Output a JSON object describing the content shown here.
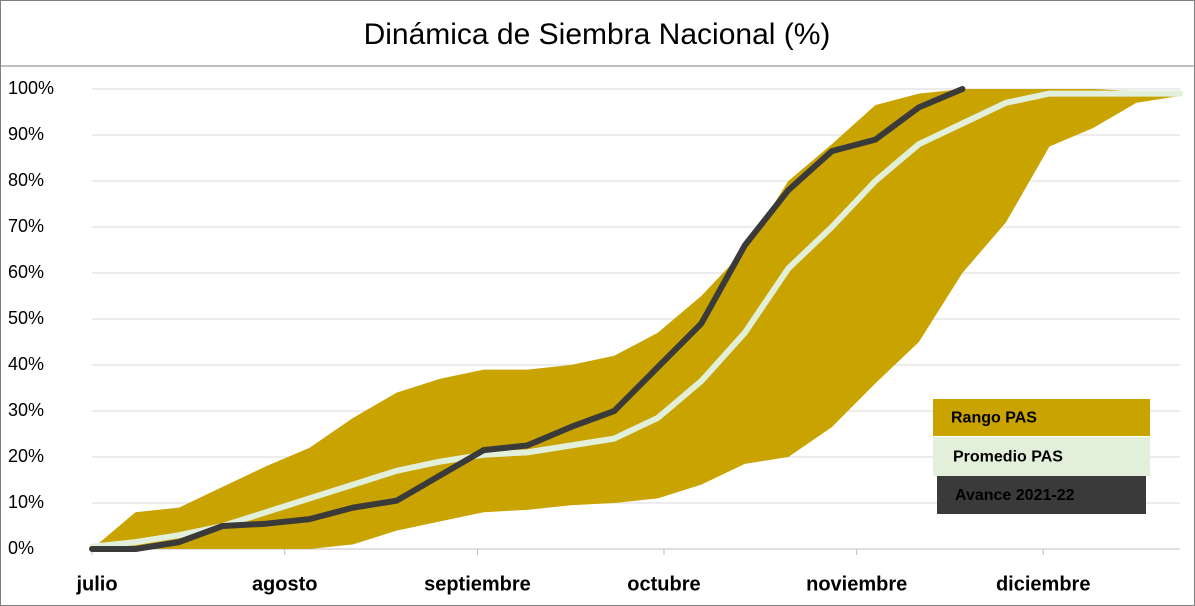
{
  "chart_data": {
    "type": "line",
    "title": "Dinámica de Siembra Nacional (%)",
    "x": [
      0,
      7,
      14,
      21,
      28,
      35,
      42,
      49,
      56,
      63,
      70,
      77,
      84,
      91,
      98,
      105,
      112,
      119,
      126,
      133,
      140,
      147,
      154,
      161,
      168,
      175
    ],
    "xlim": [
      0,
      175
    ],
    "xticks": [
      {
        "value": 0,
        "label": "julio"
      },
      {
        "value": 31,
        "label": "agosto"
      },
      {
        "value": 62,
        "label": "septiembre"
      },
      {
        "value": 92,
        "label": "octubre"
      },
      {
        "value": 123,
        "label": "noviembre"
      },
      {
        "value": 153,
        "label": "diciembre"
      }
    ],
    "ylim": [
      0,
      100
    ],
    "yticks": [
      {
        "value": 0,
        "label": "0%"
      },
      {
        "value": 10,
        "label": "10%"
      },
      {
        "value": 20,
        "label": "20%"
      },
      {
        "value": 30,
        "label": "30%"
      },
      {
        "value": 40,
        "label": "40%"
      },
      {
        "value": 50,
        "label": "50%"
      },
      {
        "value": 60,
        "label": "60%"
      },
      {
        "value": 70,
        "label": "70%"
      },
      {
        "value": 80,
        "label": "80%"
      },
      {
        "value": 90,
        "label": "90%"
      },
      {
        "value": 100,
        "label": "100%"
      }
    ],
    "grid": true,
    "legend": "bottom-right",
    "series": [
      {
        "name": "Rango PAS",
        "color": "#c9a400",
        "type": "band",
        "high": [
          0,
          8,
          9,
          13.5,
          18,
          22,
          28.5,
          34,
          37,
          39,
          39,
          40,
          42,
          47,
          55,
          65,
          80,
          88,
          96.5,
          99,
          100,
          100,
          100,
          100,
          99.5,
          99
        ],
        "low": [
          0,
          0,
          0,
          0,
          0,
          0,
          1,
          4,
          6,
          8,
          8.5,
          9.5,
          10,
          11,
          14,
          18.5,
          20,
          26.5,
          36,
          45,
          60,
          71,
          87.5,
          91.5,
          97,
          98.5
        ]
      },
      {
        "name": "Promedio PAS",
        "color": "#e2efda",
        "type": "line",
        "values": [
          0.5,
          1.5,
          3,
          5,
          8,
          11,
          14,
          17,
          19,
          20.5,
          21,
          22.5,
          24,
          28.5,
          36.5,
          47,
          61,
          70,
          80,
          88,
          92.5,
          97,
          99,
          99,
          99,
          99
        ]
      },
      {
        "name": "Avance 2021-22",
        "color": "#3a3a3a",
        "type": "line",
        "values": [
          0,
          0,
          1.5,
          5,
          5.5,
          6.5,
          9,
          10.5,
          16,
          21.5,
          22.5,
          26.5,
          30,
          39.5,
          49,
          66,
          78,
          86.5,
          89,
          96,
          100,
          null,
          null,
          null,
          null,
          null
        ]
      }
    ]
  }
}
